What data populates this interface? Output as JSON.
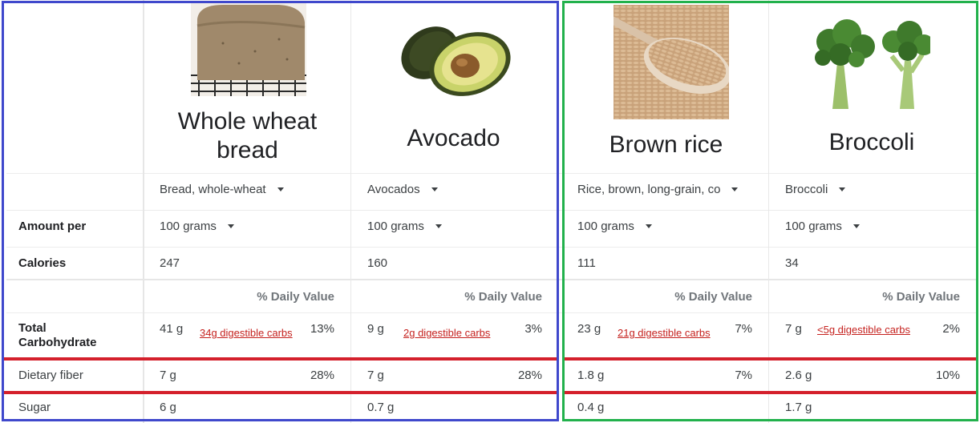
{
  "row_labels": {
    "amount_per": "Amount per",
    "calories": "Calories",
    "total_carbohydrate_line1": "Total",
    "total_carbohydrate_line2": "Carbohydrate",
    "dietary_fiber": "Dietary fiber",
    "sugar": "Sugar"
  },
  "daily_value_header": "% Daily Value",
  "colors": {
    "blue_frame": "#3f48cc",
    "green_frame": "#22b14c",
    "highlight_line": "#d4202c",
    "link": "#c5221f"
  },
  "foods": [
    {
      "name_line1": "Whole wheat",
      "name_line2": "bread",
      "image_icon": "bread-loaf-image",
      "variant": "Bread, whole-wheat",
      "amount": "100 grams",
      "calories": "247",
      "carbs": "41 g",
      "digestible": "34g digestible carbs",
      "carbs_dv": "13%",
      "fiber": "7 g",
      "fiber_dv": "28%",
      "sugar": "6 g"
    },
    {
      "name_line1": "Avocado",
      "name_line2": "",
      "image_icon": "avocado-image",
      "variant": "Avocados",
      "amount": "100 grams",
      "calories": "160",
      "carbs": "9 g",
      "digestible": "2g digestible carbs",
      "carbs_dv": "3%",
      "fiber": "7 g",
      "fiber_dv": "28%",
      "sugar": "0.7 g"
    },
    {
      "name_line1": "Brown rice",
      "name_line2": "",
      "image_icon": "brown-rice-spoon-image",
      "variant": "Rice, brown, long-grain, co",
      "amount": "100 grams",
      "calories": "111",
      "carbs": "23 g",
      "digestible": "21g digestible carbs",
      "carbs_dv": "7%",
      "fiber": "1.8 g",
      "fiber_dv": "7%",
      "sugar": "0.4 g"
    },
    {
      "name_line1": "Broccoli",
      "name_line2": "",
      "image_icon": "broccoli-image",
      "variant": "Broccoli",
      "amount": "100 grams",
      "calories": "34",
      "carbs": "7 g",
      "digestible": "<5g digestible carbs",
      "carbs_dv": "2%",
      "fiber": "2.6 g",
      "fiber_dv": "10%",
      "sugar": "1.7 g"
    }
  ]
}
